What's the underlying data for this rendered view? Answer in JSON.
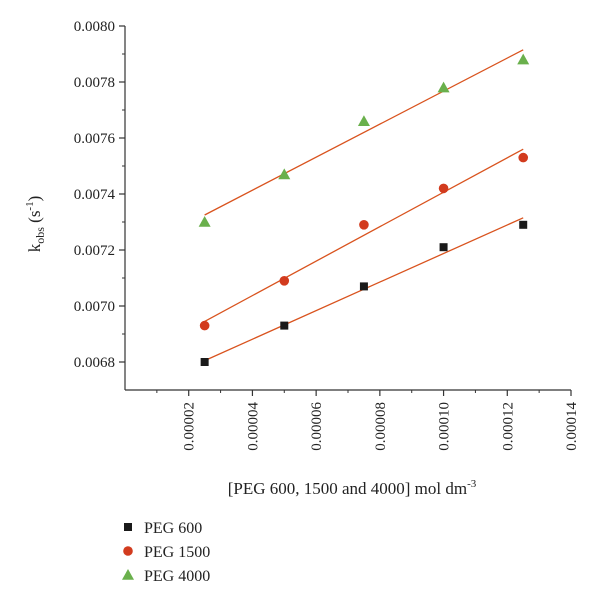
{
  "chart_data": {
    "type": "scatter",
    "title": "",
    "xlabel": "[PEG 600, 1500 and 4000] mol dm",
    "xlabel_sup": "-3",
    "ylabel_main": "k",
    "ylabel_sub": "obs",
    "ylabel_unit_open": " (s",
    "ylabel_unit_sup": "-1",
    "ylabel_unit_close": ")",
    "xlim": [
      0,
      0.00014
    ],
    "ylim": [
      0.0067,
      0.008
    ],
    "x_ticks": [
      2e-05,
      4e-05,
      6e-05,
      8e-05,
      0.0001,
      0.00012,
      0.00014
    ],
    "x_tick_labels": [
      "0.00002",
      "0.00004",
      "0.00006",
      "0.00008",
      "0.00010",
      "0.00012",
      "0.00014"
    ],
    "y_ticks": [
      0.0068,
      0.007,
      0.0072,
      0.0074,
      0.0076,
      0.0078,
      0.008
    ],
    "y_tick_labels": [
      "0.0068",
      "0.0070",
      "0.0072",
      "0.0074",
      "0.0076",
      "0.0078",
      "0.0080"
    ],
    "x": [
      2.5e-05,
      5e-05,
      7.5e-05,
      0.0001,
      0.000125
    ],
    "fit_line_color": "#d9531e",
    "legend_position": "bottom-left",
    "series": [
      {
        "name": "PEG 600",
        "marker": "square",
        "color": "#1a1a1a",
        "values": [
          0.0068,
          0.00693,
          0.00707,
          0.00721,
          0.00729
        ],
        "fit": [
          0.006805,
          0.007315
        ]
      },
      {
        "name": "PEG 1500",
        "marker": "circle",
        "color": "#d23b1e",
        "values": [
          0.00693,
          0.00709,
          0.00729,
          0.00742,
          0.00753
        ],
        "fit": [
          0.006945,
          0.00756
        ]
      },
      {
        "name": "PEG 4000",
        "marker": "triangle",
        "color": "#6ab04c",
        "values": [
          0.0073,
          0.00747,
          0.00766,
          0.00778,
          0.00788
        ],
        "fit": [
          0.007325,
          0.007915
        ]
      }
    ]
  }
}
